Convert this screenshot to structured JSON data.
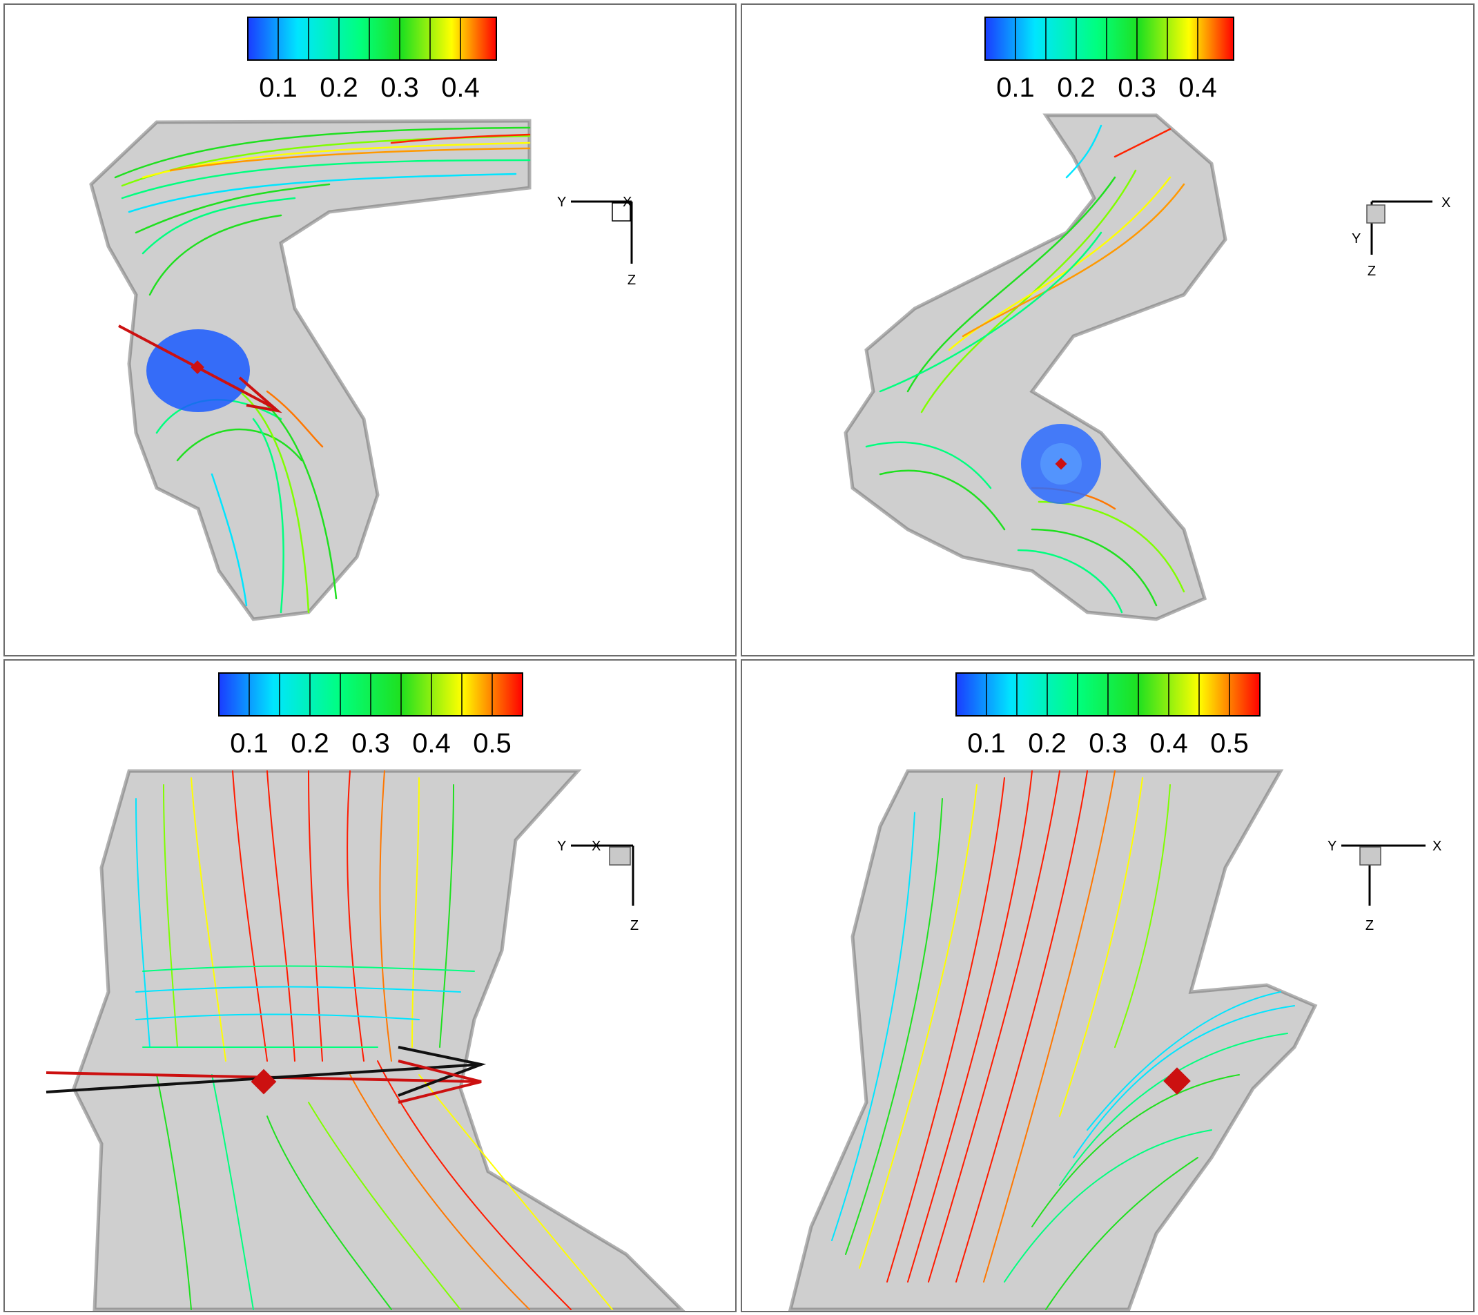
{
  "colors": {
    "panel_border": "#6b6b6b",
    "duct_fill": "#c9c9c9",
    "duct_edge": "#555555",
    "vector_red": "#cc1010",
    "vector_black": "#111111",
    "colormap": [
      "#1a3cff",
      "#00e5ff",
      "#00ff7f",
      "#1fe01f",
      "#ffff00",
      "#ff0000"
    ]
  },
  "panels": [
    {
      "id": "top-left",
      "colorbar": {
        "ticks": [
          "0.1",
          "0.2",
          "0.3",
          "0.4"
        ],
        "segments": 8,
        "vmax": 0.45
      },
      "triad": {
        "labels": [
          "Y",
          "X",
          "Z"
        ]
      }
    },
    {
      "id": "top-right",
      "colorbar": {
        "ticks": [
          "0.1",
          "0.2",
          "0.3",
          "0.4"
        ],
        "segments": 8,
        "vmax": 0.45
      },
      "triad": {
        "labels": [
          "X",
          "Y",
          "Z"
        ]
      }
    },
    {
      "id": "bottom-left",
      "colorbar": {
        "ticks": [
          "0.1",
          "0.2",
          "0.3",
          "0.4",
          "0.5"
        ],
        "segments": 10,
        "vmax": 0.55
      },
      "triad": {
        "labels": [
          "Y",
          "X",
          "Z"
        ]
      }
    },
    {
      "id": "bottom-right",
      "colorbar": {
        "ticks": [
          "0.1",
          "0.2",
          "0.3",
          "0.4",
          "0.5"
        ],
        "segments": 10,
        "vmax": 0.55
      },
      "triad": {
        "labels": [
          "Y",
          "X",
          "Z"
        ]
      }
    }
  ]
}
